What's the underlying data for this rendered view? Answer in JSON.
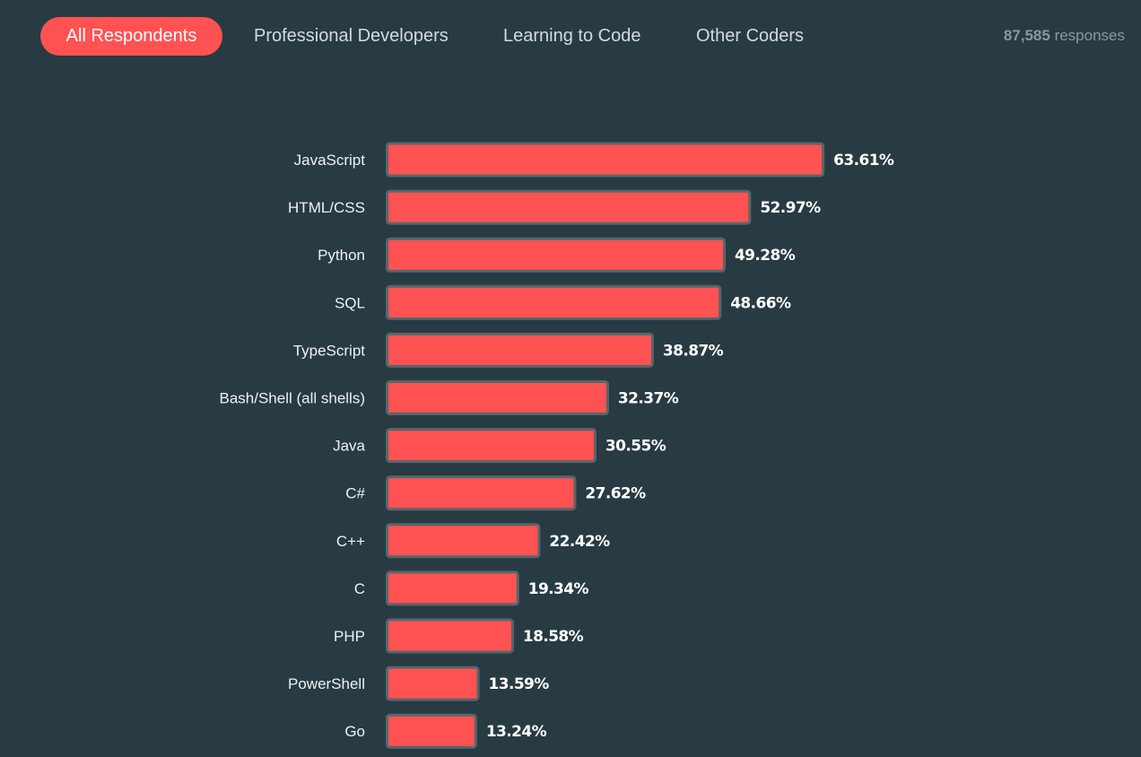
{
  "tabs": [
    {
      "label": "All Respondents",
      "active": true
    },
    {
      "label": "Professional Developers",
      "active": false
    },
    {
      "label": "Learning to Code",
      "active": false
    },
    {
      "label": "Other Coders",
      "active": false
    }
  ],
  "responses": {
    "count": "87,585",
    "label": "responses"
  },
  "colors": {
    "background": "#283b42",
    "accent": "#ff5252",
    "bar_border": "#56666c"
  },
  "chart_data": {
    "type": "bar",
    "orientation": "horizontal",
    "categories": [
      "JavaScript",
      "HTML/CSS",
      "Python",
      "SQL",
      "TypeScript",
      "Bash/Shell (all shells)",
      "Java",
      "C#",
      "C++",
      "C",
      "PHP",
      "PowerShell",
      "Go"
    ],
    "values": [
      63.61,
      52.97,
      49.28,
      48.66,
      38.87,
      32.37,
      30.55,
      27.62,
      22.42,
      19.34,
      18.58,
      13.59,
      13.24
    ],
    "value_labels": [
      "63.61%",
      "52.97%",
      "49.28%",
      "48.66%",
      "38.87%",
      "32.37%",
      "30.55%",
      "27.62%",
      "22.42%",
      "19.34%",
      "18.58%",
      "13.59%",
      "13.24%"
    ],
    "unit": "%",
    "xlim": [
      0,
      100
    ],
    "grid": false,
    "legend": "none"
  }
}
